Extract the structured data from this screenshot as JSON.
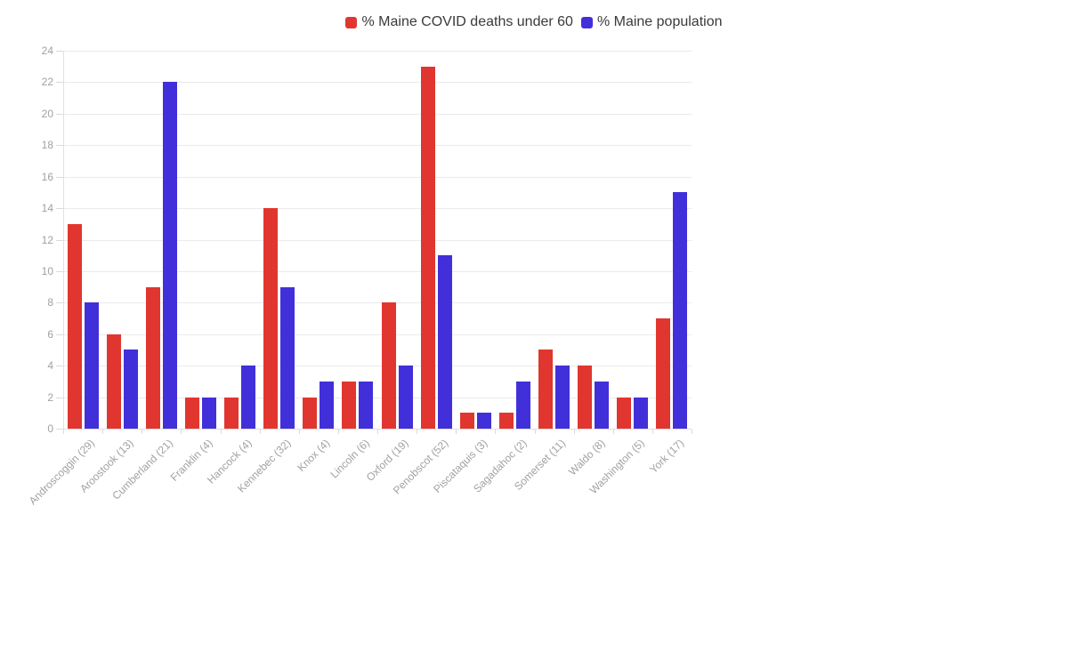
{
  "chart_data": {
    "type": "bar",
    "title": "",
    "xlabel": "",
    "ylabel": "",
    "categories": [
      "Androscoggin (29)",
      "Aroostook (13)",
      "Cumberland (21)",
      "Franklin (4)",
      "Hancock (4)",
      "Kennebec (32)",
      "Knox (4)",
      "Lincoln (6)",
      "Oxford (19)",
      "Penobscot (52)",
      "Piscataquis (3)",
      "Sagadahoc (2)",
      "Somerset (11)",
      "Waldo (8)",
      "Washington (5)",
      "York (17)"
    ],
    "series": [
      {
        "name": "% Maine COVID deaths under 60",
        "color": "#e1362f",
        "values": [
          13,
          6,
          9,
          2,
          2,
          14,
          2,
          3,
          8,
          23,
          1,
          1,
          5,
          4,
          2,
          7
        ]
      },
      {
        "name": "% Maine population",
        "color": "#4130da",
        "values": [
          8,
          5,
          22,
          2,
          4,
          9,
          3,
          3,
          4,
          11,
          1,
          3,
          4,
          3,
          2,
          15
        ]
      }
    ],
    "ylim": [
      0,
      24
    ],
    "yticks": [
      0,
      2,
      4,
      6,
      8,
      10,
      12,
      14,
      16,
      18,
      20,
      22,
      24
    ],
    "grid": "horizontal",
    "legend_position": "top-center",
    "colors": {
      "background": "#ffffff",
      "gridline": "#eceaec",
      "axis": "#e3e0e3",
      "tick": "#dcd9dc",
      "tick_label": "#a3a0a3",
      "legend_text": "#3a3a3a"
    }
  }
}
